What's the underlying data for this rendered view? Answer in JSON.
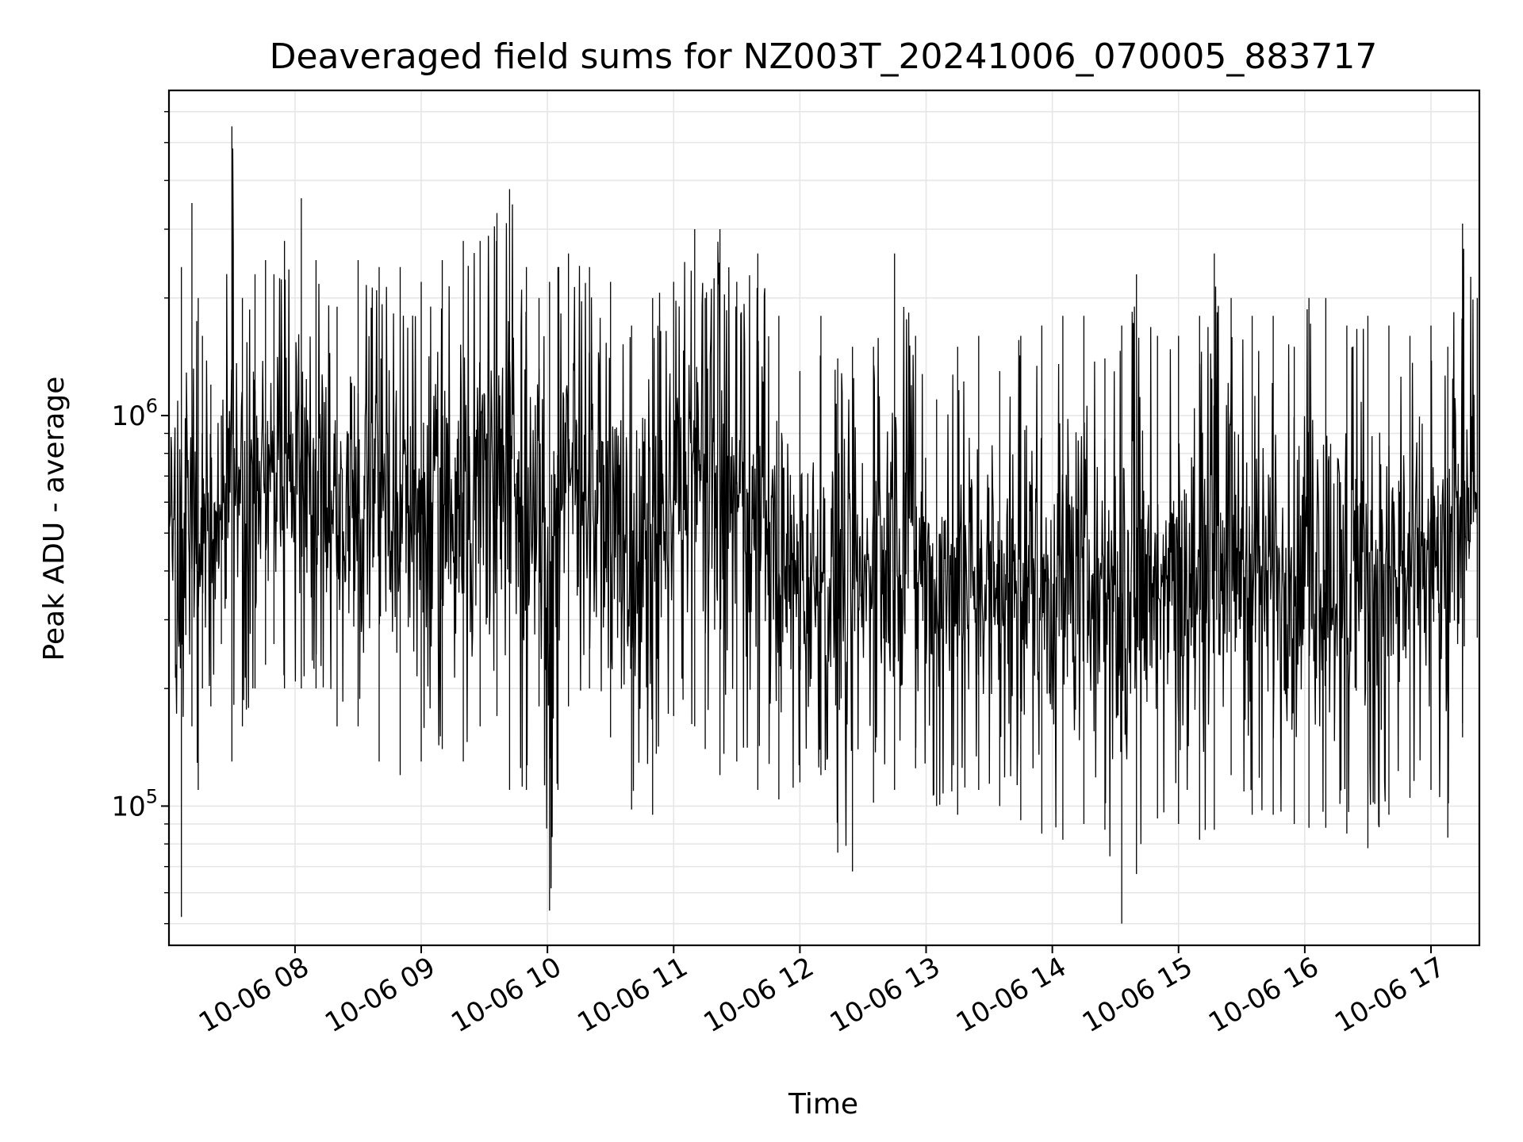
{
  "chart_data": {
    "type": "line",
    "title": "Deaveraged field sums for NZ003T_20241006_070005_883717",
    "xlabel": "Time",
    "ylabel": "Peak ADU - average",
    "yscale": "log",
    "ylim": [
      44000,
      6800000
    ],
    "xlim": [
      "2024-10-06 07:00:05",
      "2024-10-06 17:23:00"
    ],
    "x_ticks": [
      "10-06 08",
      "10-06 09",
      "10-06 10",
      "10-06 11",
      "10-06 12",
      "10-06 13",
      "10-06 14",
      "10-06 15",
      "10-06 16",
      "10-06 17"
    ],
    "y_ticks": [
      "10^5",
      "10^6"
    ],
    "grid": true,
    "line_color": "#000000",
    "series": [
      {
        "x": [
          "2024-10-06 07:00:05",
          "2024-10-06 07:06",
          "2024-10-06 07:11",
          "2024-10-06 07:14",
          "2024-10-06 07:16",
          "2024-10-06 07:20",
          "2024-10-06 07:25",
          "2024-10-06 07:30",
          "2024-10-06 07:35",
          "2024-10-06 07:41",
          "2024-10-06 07:46",
          "2024-10-06 07:50",
          "2024-10-06 07:55",
          "2024-10-06 08:03",
          "2024-10-06 08:10",
          "2024-10-06 08:20",
          "2024-10-06 08:30",
          "2024-10-06 08:40",
          "2024-10-06 08:50",
          "2024-10-06 09:00",
          "2024-10-06 09:10",
          "2024-10-06 09:20",
          "2024-10-06 09:28",
          "2024-10-06 09:36",
          "2024-10-06 09:42",
          "2024-10-06 09:50",
          "2024-10-06 09:56",
          "2024-10-06 10:01",
          "2024-10-06 10:05",
          "2024-10-06 10:10",
          "2024-10-06 10:20",
          "2024-10-06 10:30",
          "2024-10-06 10:40",
          "2024-10-06 10:50",
          "2024-10-06 11:00",
          "2024-10-06 11:10",
          "2024-10-06 11:15",
          "2024-10-06 11:22",
          "2024-10-06 11:30",
          "2024-10-06 11:40",
          "2024-10-06 11:50",
          "2024-10-06 12:00",
          "2024-10-06 12:10",
          "2024-10-06 12:18",
          "2024-10-06 12:25",
          "2024-10-06 12:35",
          "2024-10-06 12:45",
          "2024-10-06 12:55",
          "2024-10-06 13:05",
          "2024-10-06 13:15",
          "2024-10-06 13:25",
          "2024-10-06 13:35",
          "2024-10-06 13:45",
          "2024-10-06 13:55",
          "2024-10-06 14:05",
          "2024-10-06 14:15",
          "2024-10-06 14:25",
          "2024-10-06 14:33",
          "2024-10-06 14:40",
          "2024-10-06 14:50",
          "2024-10-06 15:00",
          "2024-10-06 15:10",
          "2024-10-06 15:17",
          "2024-10-06 15:25",
          "2024-10-06 15:35",
          "2024-10-06 15:45",
          "2024-10-06 15:55",
          "2024-10-06 16:02",
          "2024-10-06 16:10",
          "2024-10-06 16:20",
          "2024-10-06 16:30",
          "2024-10-06 16:40",
          "2024-10-06 16:50",
          "2024-10-06 17:00",
          "2024-10-06 17:08",
          "2024-10-06 17:15",
          "2024-10-06 17:22"
        ],
        "y_high": [
          1800000,
          2400000,
          3500000,
          2000000,
          1600000,
          1200000,
          1000000,
          5500000,
          2000000,
          2300000,
          2500000,
          2300000,
          2800000,
          3600000,
          2500000,
          1900000,
          2500000,
          2400000,
          2400000,
          2200000,
          2500000,
          2800000,
          2800000,
          3300000,
          3800000,
          2400000,
          2000000,
          2200000,
          2400000,
          2600000,
          2400000,
          2200000,
          1700000,
          2000000,
          2200000,
          3000000,
          2000000,
          3000000,
          2200000,
          2600000,
          1800000,
          1300000,
          1800000,
          1400000,
          1500000,
          1500000,
          2600000,
          1600000,
          1100000,
          1500000,
          1600000,
          1300000,
          1600000,
          1700000,
          1800000,
          1800000,
          1400000,
          1700000,
          2300000,
          1600000,
          1600000,
          1800000,
          2600000,
          2000000,
          1800000,
          1800000,
          1500000,
          2000000,
          2000000,
          1700000,
          1800000,
          1700000,
          1600000,
          1700000,
          1500000,
          3100000,
          2000000
        ],
        "y_low": [
          220000,
          52000,
          160000,
          110000,
          200000,
          180000,
          260000,
          130000,
          160000,
          200000,
          230000,
          260000,
          200000,
          200000,
          200000,
          160000,
          160000,
          130000,
          120000,
          130000,
          140000,
          130000,
          160000,
          170000,
          110000,
          110000,
          180000,
          54000,
          110000,
          180000,
          200000,
          150000,
          98000,
          95000,
          170000,
          160000,
          140000,
          120000,
          130000,
          110000,
          104000,
          115000,
          120000,
          76000,
          68000,
          102000,
          110000,
          125000,
          100000,
          95000,
          110000,
          100000,
          92000,
          85000,
          82000,
          90000,
          87000,
          50000,
          67000,
          93000,
          90000,
          82000,
          87000,
          120000,
          95000,
          95000,
          90000,
          88000,
          88000,
          85000,
          78000,
          95000,
          105000,
          110000,
          83000,
          150000,
          270000
        ]
      }
    ]
  }
}
